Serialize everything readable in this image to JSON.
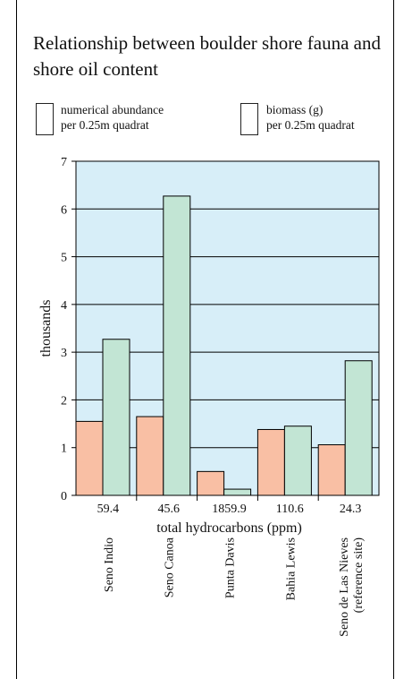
{
  "chart_data": {
    "type": "bar",
    "title": "Relationship between boulder shore fauna and shore oil content",
    "ylabel": "thousands",
    "xlabel": "total hydrocarbons (ppm)",
    "ylim": [
      0,
      7
    ],
    "yticks": [
      "0",
      "1",
      "2",
      "3",
      "4",
      "5",
      "6",
      "7"
    ],
    "grid": true,
    "legend_position": "top",
    "categories": [
      "59.4",
      "45.6",
      "1859.9",
      "110.6",
      "24.3"
    ],
    "sites": [
      [
        "Seno Indio"
      ],
      [
        "Seno Canoa"
      ],
      [
        "Punta Davis"
      ],
      [
        "Bahia Lewis"
      ],
      [
        "Seno de Las Nieves",
        "(reference site)"
      ]
    ],
    "series": [
      {
        "name": "numerical abundance per 0.25m quadrat",
        "name_lines": [
          "numerical abundance",
          "per 0.25m quadrat"
        ],
        "values": [
          1.55,
          1.65,
          0.5,
          1.38,
          1.06
        ],
        "color": "#f9bfa4"
      },
      {
        "name": "biomass (g) per 0.25m quadrat",
        "name_lines": [
          "biomass (g)",
          "per 0.25m quadrat"
        ],
        "values": [
          3.27,
          6.27,
          0.13,
          1.45,
          2.82
        ],
        "color": "#c2e5d4"
      }
    ],
    "plot_background": "#d7eef8"
  }
}
